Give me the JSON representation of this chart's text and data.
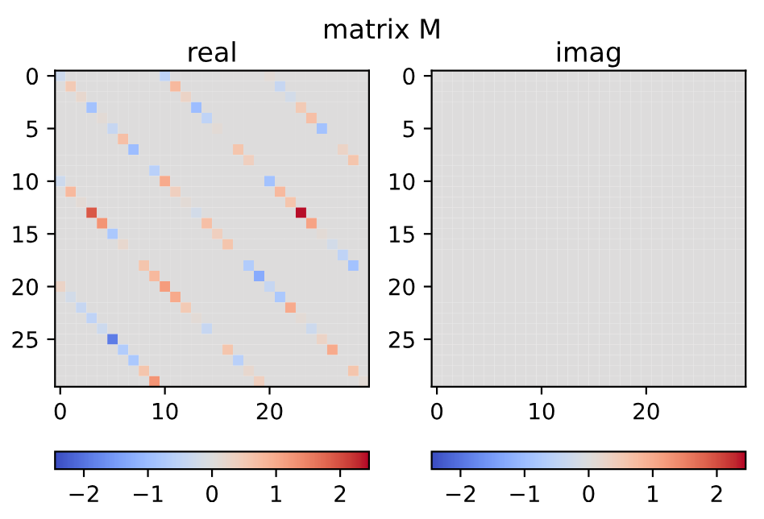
{
  "chart_data": [
    {
      "type": "heatmap",
      "title": "real",
      "annotations": [
        "matrix M"
      ],
      "categories": [
        "0",
        null,
        null,
        null,
        null,
        null,
        null,
        null,
        null,
        null,
        "10",
        null,
        null,
        null,
        null,
        null,
        null,
        null,
        null,
        null,
        "20",
        null,
        null,
        null,
        null,
        null,
        null,
        null,
        null,
        null
      ],
      "y_categories": [
        "0",
        null,
        null,
        null,
        null,
        "5",
        null,
        null,
        null,
        null,
        "10",
        null,
        null,
        null,
        null,
        "15",
        null,
        null,
        null,
        null,
        "20",
        null,
        null,
        null,
        null,
        "25",
        null,
        null,
        null,
        null
      ],
      "clim": [
        -2.45,
        2.45
      ],
      "cticks": [
        -2,
        -1,
        0,
        1,
        2
      ],
      "cells": [
        [
          -0.3,
          0,
          0,
          0,
          0,
          0,
          0,
          0,
          0,
          0,
          -0.5,
          0,
          0,
          0,
          0,
          0,
          0,
          0,
          0,
          0,
          0.1,
          0,
          0,
          0,
          0,
          0,
          0,
          0,
          0,
          0
        ],
        [
          0,
          0.5,
          0,
          0,
          0,
          0,
          0,
          0,
          0,
          0,
          0,
          0.8,
          0,
          0,
          0,
          0,
          0,
          0,
          0,
          0,
          0,
          -0.4,
          0,
          0,
          0,
          0,
          0,
          0,
          0,
          0
        ],
        [
          0,
          0,
          0.2,
          0,
          0,
          0,
          0,
          0,
          0,
          0,
          0,
          0,
          0.3,
          0,
          0,
          0,
          0,
          0,
          0,
          0,
          0,
          0,
          -0.2,
          0,
          0,
          0,
          0,
          0,
          0,
          0
        ],
        [
          0,
          0,
          0,
          -0.9,
          0,
          0,
          0,
          0,
          0,
          0,
          0,
          0,
          0,
          -1.0,
          0,
          0,
          0,
          0,
          0,
          0,
          0,
          0,
          0,
          0.5,
          0,
          0,
          0,
          0,
          0,
          0
        ],
        [
          0,
          0,
          0,
          0,
          0.1,
          0,
          0,
          0,
          0,
          0,
          0,
          0,
          0,
          0,
          -0.5,
          0,
          0,
          0,
          0,
          0,
          0,
          0,
          0,
          0,
          0.7,
          0,
          0,
          0,
          0,
          0
        ],
        [
          0,
          0,
          0,
          0,
          0,
          -0.4,
          0,
          0,
          0,
          0,
          0,
          0,
          0,
          0,
          0,
          0.1,
          0,
          0,
          0,
          0,
          0,
          0,
          0,
          0,
          0,
          -0.9,
          0,
          0,
          0,
          0
        ],
        [
          0,
          0,
          0,
          0,
          0,
          0,
          0.7,
          0,
          0,
          0,
          0,
          0,
          0,
          0,
          0,
          0,
          0,
          0,
          0,
          0,
          0,
          0,
          0,
          0,
          0,
          0,
          0,
          0,
          0,
          0
        ],
        [
          0,
          0,
          0,
          0,
          0,
          0,
          0,
          -1.0,
          0,
          0,
          0,
          0,
          0,
          0,
          0,
          0,
          0,
          0.6,
          0,
          0,
          0,
          0,
          0,
          0,
          0,
          0,
          0,
          0.3,
          0,
          0
        ],
        [
          0,
          0,
          0,
          0,
          0,
          0,
          0,
          0,
          0,
          0,
          0,
          0,
          0,
          0,
          0,
          0,
          0,
          0,
          0.4,
          0,
          0,
          0,
          0,
          0,
          0,
          0,
          0,
          0,
          0.6,
          0
        ],
        [
          0,
          0,
          0,
          0,
          0,
          0,
          0,
          0,
          0,
          -0.6,
          0,
          0,
          0,
          0,
          0,
          0,
          0,
          0,
          0,
          0,
          0,
          0,
          0,
          0,
          0,
          0,
          0,
          0,
          0,
          0
        ],
        [
          -0.3,
          0,
          0,
          0,
          0,
          0,
          0,
          0,
          0,
          0,
          1.0,
          0,
          0,
          0,
          0,
          0,
          0,
          0,
          0,
          0,
          -0.9,
          0,
          0,
          0,
          0,
          0,
          0,
          0,
          0,
          0
        ],
        [
          0,
          0.8,
          0,
          0,
          0,
          0,
          0,
          0,
          0,
          0,
          0,
          0.4,
          0,
          0,
          0,
          0,
          0,
          0,
          0,
          0,
          0,
          0.8,
          0,
          0,
          0,
          0,
          0,
          0,
          0,
          0
        ],
        [
          0,
          0,
          0.1,
          0,
          0,
          0,
          0,
          0,
          0,
          0,
          0,
          0,
          0.1,
          0,
          0,
          0,
          0,
          0,
          0,
          0,
          0,
          0,
          0.6,
          0,
          0,
          0,
          0,
          0,
          0,
          0
        ],
        [
          0,
          0,
          0,
          1.9,
          0,
          0,
          0,
          0,
          0,
          0,
          0,
          0,
          0,
          -0.2,
          0,
          0,
          0,
          0,
          0,
          0,
          0,
          0,
          0,
          2.4,
          0,
          0,
          0,
          0,
          0,
          0
        ],
        [
          0,
          0,
          0,
          0,
          1.3,
          0,
          0,
          0,
          0,
          0,
          0,
          0,
          0,
          0,
          0.7,
          0,
          0,
          0,
          0,
          0,
          0,
          0,
          0,
          0,
          1.1,
          0,
          0,
          0,
          0,
          0
        ],
        [
          0,
          0,
          0,
          0,
          0,
          -0.8,
          0,
          0,
          0,
          0,
          0,
          0,
          0,
          0,
          0,
          0.4,
          0,
          0,
          0,
          0,
          0,
          0,
          0,
          0,
          0,
          0.1,
          0,
          0,
          0,
          0
        ],
        [
          0,
          0,
          0,
          0,
          0,
          0,
          0.2,
          0,
          0,
          0,
          0,
          0,
          0,
          0,
          0,
          0,
          0.6,
          0,
          0,
          0,
          0,
          0,
          0,
          0,
          0,
          0,
          -0.2,
          0,
          0,
          0
        ],
        [
          0,
          0,
          0,
          0,
          0,
          0,
          0,
          0,
          0,
          0,
          0,
          0,
          0,
          0,
          0,
          0,
          0,
          0,
          0,
          0,
          0,
          0,
          0,
          0,
          0,
          0,
          0,
          -0.5,
          0,
          0
        ],
        [
          0,
          0,
          0,
          0,
          0,
          0,
          0,
          0,
          0.6,
          0,
          0,
          0,
          0,
          0,
          0,
          0,
          0,
          0,
          -0.7,
          0,
          0,
          0,
          0,
          0,
          0,
          0,
          0,
          0,
          -0.9,
          0
        ],
        [
          0,
          0,
          0,
          0,
          0,
          0,
          0,
          0,
          0,
          0.8,
          0,
          0,
          0,
          0,
          0,
          0,
          0,
          0,
          0,
          -1.3,
          0,
          0,
          0,
          0,
          0,
          0,
          0,
          0,
          0,
          0
        ],
        [
          0.3,
          0,
          0,
          0,
          0,
          0,
          0,
          0,
          0,
          0,
          1.2,
          0,
          0,
          0,
          0,
          0,
          0,
          0,
          0,
          0,
          -0.4,
          0,
          0,
          0,
          0,
          0,
          0,
          0,
          0,
          0
        ],
        [
          0,
          -0.2,
          0,
          0,
          0,
          0,
          0,
          0,
          0,
          0,
          0,
          1.0,
          0,
          0,
          0,
          0,
          0,
          0,
          0,
          0,
          0,
          -0.8,
          0,
          0,
          0,
          0,
          0,
          0,
          0,
          0
        ],
        [
          0,
          0,
          -0.4,
          0,
          0,
          0,
          0,
          0,
          0,
          0,
          0,
          0,
          0.5,
          0,
          0,
          0,
          0,
          0,
          0,
          0,
          0,
          0,
          1.0,
          0,
          0,
          0,
          0,
          0,
          0,
          0
        ],
        [
          0,
          0,
          0,
          -0.5,
          0,
          0,
          0,
          0,
          0,
          0,
          0,
          0,
          0,
          0.1,
          0,
          0,
          0,
          0,
          0,
          0,
          0,
          0,
          0,
          0.1,
          0,
          0,
          0,
          0,
          0,
          0
        ],
        [
          0,
          0,
          0,
          0,
          -0.3,
          0,
          0,
          0,
          0,
          0,
          0,
          0,
          0,
          0,
          -0.4,
          0,
          0,
          0,
          0,
          0,
          0,
          0,
          0,
          0,
          -0.3,
          0,
          0,
          0,
          0,
          0
        ],
        [
          0,
          0,
          0,
          0,
          0,
          -1.9,
          0,
          0,
          0,
          0,
          0,
          0,
          0,
          0,
          0,
          0,
          0,
          0,
          0,
          0,
          0,
          0,
          0,
          0,
          0,
          0.3,
          0,
          0,
          0,
          0
        ],
        [
          0,
          0,
          0,
          0,
          0,
          0,
          -0.7,
          0,
          0,
          0,
          0,
          0,
          0,
          0,
          0,
          0,
          0.6,
          0,
          0,
          0,
          0,
          0,
          0,
          0,
          0,
          0,
          1.0,
          0,
          0,
          0
        ],
        [
          0,
          0,
          0,
          0,
          0,
          0,
          0,
          -0.8,
          0,
          0,
          0,
          0,
          0,
          0,
          0,
          0,
          0,
          -0.6,
          0,
          0,
          0,
          0,
          0,
          0,
          0,
          0,
          0,
          0,
          0,
          0
        ],
        [
          0,
          0,
          0,
          0,
          0,
          0,
          0,
          0,
          0.6,
          0,
          0,
          0,
          0,
          0,
          0,
          0,
          0,
          0,
          0.2,
          0,
          0,
          0,
          0,
          0,
          0,
          0,
          0,
          0,
          0.6,
          0
        ],
        [
          0,
          0,
          0,
          0,
          0,
          0,
          0,
          0,
          0,
          1.3,
          0,
          0,
          0,
          0,
          0,
          0,
          0,
          0,
          0,
          0.4,
          0,
          0,
          0,
          0,
          0,
          0,
          0,
          0,
          0,
          0.1
        ]
      ]
    },
    {
      "type": "heatmap",
      "title": "imag",
      "categories": [
        "0",
        null,
        null,
        null,
        null,
        null,
        null,
        null,
        null,
        null,
        "10",
        null,
        null,
        null,
        null,
        null,
        null,
        null,
        null,
        null,
        "20",
        null,
        null,
        null,
        null,
        null,
        null,
        null,
        null,
        null
      ],
      "y_categories": [
        "0",
        null,
        null,
        null,
        null,
        "5",
        null,
        null,
        null,
        null,
        "10",
        null,
        null,
        null,
        null,
        "15",
        null,
        null,
        null,
        null,
        "20",
        null,
        null,
        null,
        null,
        "25",
        null,
        null,
        null,
        null
      ],
      "clim": [
        -2.45,
        2.45
      ],
      "cticks": [
        -2,
        -1,
        0,
        1,
        2
      ],
      "cells": [
        [
          0,
          0,
          0,
          0,
          0,
          0,
          0,
          0,
          0,
          0,
          0,
          0,
          0,
          0,
          0,
          0,
          0,
          0,
          0,
          0,
          0,
          0,
          0,
          0,
          0,
          0,
          0,
          0,
          0,
          0
        ],
        [
          0,
          0,
          0,
          0,
          0,
          0,
          0,
          0,
          0,
          0,
          0,
          0,
          0,
          0,
          0,
          0,
          0,
          0,
          0,
          0,
          0,
          0,
          0,
          0,
          0,
          0,
          0,
          0,
          0,
          0
        ],
        [
          0,
          0,
          0,
          0,
          0,
          0,
          0,
          0,
          0,
          0,
          0,
          0,
          0,
          0,
          0,
          0,
          0,
          0,
          0,
          0,
          0,
          0,
          0,
          0,
          0,
          0,
          0,
          0,
          0,
          0
        ],
        [
          0,
          0,
          0,
          0,
          0,
          0,
          0,
          0,
          0,
          0,
          0,
          0,
          0,
          0,
          0,
          0,
          0,
          0,
          0,
          0,
          0,
          0,
          0,
          0,
          0,
          0,
          0,
          0,
          0,
          0
        ],
        [
          0,
          0,
          0,
          0,
          0,
          0,
          0,
          0,
          0,
          0,
          0,
          0,
          0,
          0,
          0,
          0,
          0,
          0,
          0,
          0,
          0,
          0,
          0,
          0,
          0,
          0,
          0,
          0,
          0,
          0
        ],
        [
          0,
          0,
          0,
          0,
          0,
          0,
          0,
          0,
          0,
          0,
          0,
          0,
          0,
          0,
          0,
          0,
          0,
          0,
          0,
          0,
          0,
          0,
          0,
          0,
          0,
          0,
          0,
          0,
          0,
          0
        ],
        [
          0,
          0,
          0,
          0,
          0,
          0,
          0,
          0,
          0,
          0,
          0,
          0,
          0,
          0,
          0,
          0,
          0,
          0,
          0,
          0,
          0,
          0,
          0,
          0,
          0,
          0,
          0,
          0,
          0,
          0
        ],
        [
          0,
          0,
          0,
          0,
          0,
          0,
          0,
          0,
          0,
          0,
          0,
          0,
          0,
          0,
          0,
          0,
          0,
          0,
          0,
          0,
          0,
          0,
          0,
          0,
          0,
          0,
          0,
          0,
          0,
          0
        ],
        [
          0,
          0,
          0,
          0,
          0,
          0,
          0,
          0,
          0,
          0,
          0,
          0,
          0,
          0,
          0,
          0,
          0,
          0,
          0,
          0,
          0,
          0,
          0,
          0,
          0,
          0,
          0,
          0,
          0,
          0
        ],
        [
          0,
          0,
          0,
          0,
          0,
          0,
          0,
          0,
          0,
          0,
          0,
          0,
          0,
          0,
          0,
          0,
          0,
          0,
          0,
          0,
          0,
          0,
          0,
          0,
          0,
          0,
          0,
          0,
          0,
          0
        ],
        [
          0,
          0,
          0,
          0,
          0,
          0,
          0,
          0,
          0,
          0,
          0,
          0,
          0,
          0,
          0,
          0,
          0,
          0,
          0,
          0,
          0,
          0,
          0,
          0,
          0,
          0,
          0,
          0,
          0,
          0
        ],
        [
          0,
          0,
          0,
          0,
          0,
          0,
          0,
          0,
          0,
          0,
          0,
          0,
          0,
          0,
          0,
          0,
          0,
          0,
          0,
          0,
          0,
          0,
          0,
          0,
          0,
          0,
          0,
          0,
          0,
          0
        ],
        [
          0,
          0,
          0,
          0,
          0,
          0,
          0,
          0,
          0,
          0,
          0,
          0,
          0,
          0,
          0,
          0,
          0,
          0,
          0,
          0,
          0,
          0,
          0,
          0,
          0,
          0,
          0,
          0,
          0,
          0
        ],
        [
          0,
          0,
          0,
          0,
          0,
          0,
          0,
          0,
          0,
          0,
          0,
          0,
          0,
          0,
          0,
          0,
          0,
          0,
          0,
          0,
          0,
          0,
          0,
          0,
          0,
          0,
          0,
          0,
          0,
          0
        ],
        [
          0,
          0,
          0,
          0,
          0,
          0,
          0,
          0,
          0,
          0,
          0,
          0,
          0,
          0,
          0,
          0,
          0,
          0,
          0,
          0,
          0,
          0,
          0,
          0,
          0,
          0,
          0,
          0,
          0,
          0
        ],
        [
          0,
          0,
          0,
          0,
          0,
          0,
          0,
          0,
          0,
          0,
          0,
          0,
          0,
          0,
          0,
          0,
          0,
          0,
          0,
          0,
          0,
          0,
          0,
          0,
          0,
          0,
          0,
          0,
          0,
          0
        ],
        [
          0,
          0,
          0,
          0,
          0,
          0,
          0,
          0,
          0,
          0,
          0,
          0,
          0,
          0,
          0,
          0,
          0,
          0,
          0,
          0,
          0,
          0,
          0,
          0,
          0,
          0,
          0,
          0,
          0,
          0
        ],
        [
          0,
          0,
          0,
          0,
          0,
          0,
          0,
          0,
          0,
          0,
          0,
          0,
          0,
          0,
          0,
          0,
          0,
          0,
          0,
          0,
          0,
          0,
          0,
          0,
          0,
          0,
          0,
          0,
          0,
          0
        ],
        [
          0,
          0,
          0,
          0,
          0,
          0,
          0,
          0,
          0,
          0,
          0,
          0,
          0,
          0,
          0,
          0,
          0,
          0,
          0,
          0,
          0,
          0,
          0,
          0,
          0,
          0,
          0,
          0,
          0,
          0
        ],
        [
          0,
          0,
          0,
          0,
          0,
          0,
          0,
          0,
          0,
          0,
          0,
          0,
          0,
          0,
          0,
          0,
          0,
          0,
          0,
          0,
          0,
          0,
          0,
          0,
          0,
          0,
          0,
          0,
          0,
          0
        ],
        [
          0,
          0,
          0,
          0,
          0,
          0,
          0,
          0,
          0,
          0,
          0,
          0,
          0,
          0,
          0,
          0,
          0,
          0,
          0,
          0,
          0,
          0,
          0,
          0,
          0,
          0,
          0,
          0,
          0,
          0
        ],
        [
          0,
          0,
          0,
          0,
          0,
          0,
          0,
          0,
          0,
          0,
          0,
          0,
          0,
          0,
          0,
          0,
          0,
          0,
          0,
          0,
          0,
          0,
          0,
          0,
          0,
          0,
          0,
          0,
          0,
          0
        ],
        [
          0,
          0,
          0,
          0,
          0,
          0,
          0,
          0,
          0,
          0,
          0,
          0,
          0,
          0,
          0,
          0,
          0,
          0,
          0,
          0,
          0,
          0,
          0,
          0,
          0,
          0,
          0,
          0,
          0,
          0
        ],
        [
          0,
          0,
          0,
          0,
          0,
          0,
          0,
          0,
          0,
          0,
          0,
          0,
          0,
          0,
          0,
          0,
          0,
          0,
          0,
          0,
          0,
          0,
          0,
          0,
          0,
          0,
          0,
          0,
          0,
          0
        ],
        [
          0,
          0,
          0,
          0,
          0,
          0,
          0,
          0,
          0,
          0,
          0,
          0,
          0,
          0,
          0,
          0,
          0,
          0,
          0,
          0,
          0,
          0,
          0,
          0,
          0,
          0,
          0,
          0,
          0,
          0
        ],
        [
          0,
          0,
          0,
          0,
          0,
          0,
          0,
          0,
          0,
          0,
          0,
          0,
          0,
          0,
          0,
          0,
          0,
          0,
          0,
          0,
          0,
          0,
          0,
          0,
          0,
          0,
          0,
          0,
          0,
          0
        ],
        [
          0,
          0,
          0,
          0,
          0,
          0,
          0,
          0,
          0,
          0,
          0,
          0,
          0,
          0,
          0,
          0,
          0,
          0,
          0,
          0,
          0,
          0,
          0,
          0,
          0,
          0,
          0,
          0,
          0,
          0
        ],
        [
          0,
          0,
          0,
          0,
          0,
          0,
          0,
          0,
          0,
          0,
          0,
          0,
          0,
          0,
          0,
          0,
          0,
          0,
          0,
          0,
          0,
          0,
          0,
          0,
          0,
          0,
          0,
          0,
          0,
          0
        ],
        [
          0,
          0,
          0,
          0,
          0,
          0,
          0,
          0,
          0,
          0,
          0,
          0,
          0,
          0,
          0,
          0,
          0,
          0,
          0,
          0,
          0,
          0,
          0,
          0,
          0,
          0,
          0,
          0,
          0,
          0
        ],
        [
          0,
          0,
          0,
          0,
          0,
          0,
          0,
          0,
          0,
          0,
          0,
          0,
          0,
          0,
          0,
          0,
          0,
          0,
          0,
          0,
          0,
          0,
          0,
          0,
          0,
          0,
          0,
          0,
          0,
          0
        ]
      ]
    }
  ]
}
